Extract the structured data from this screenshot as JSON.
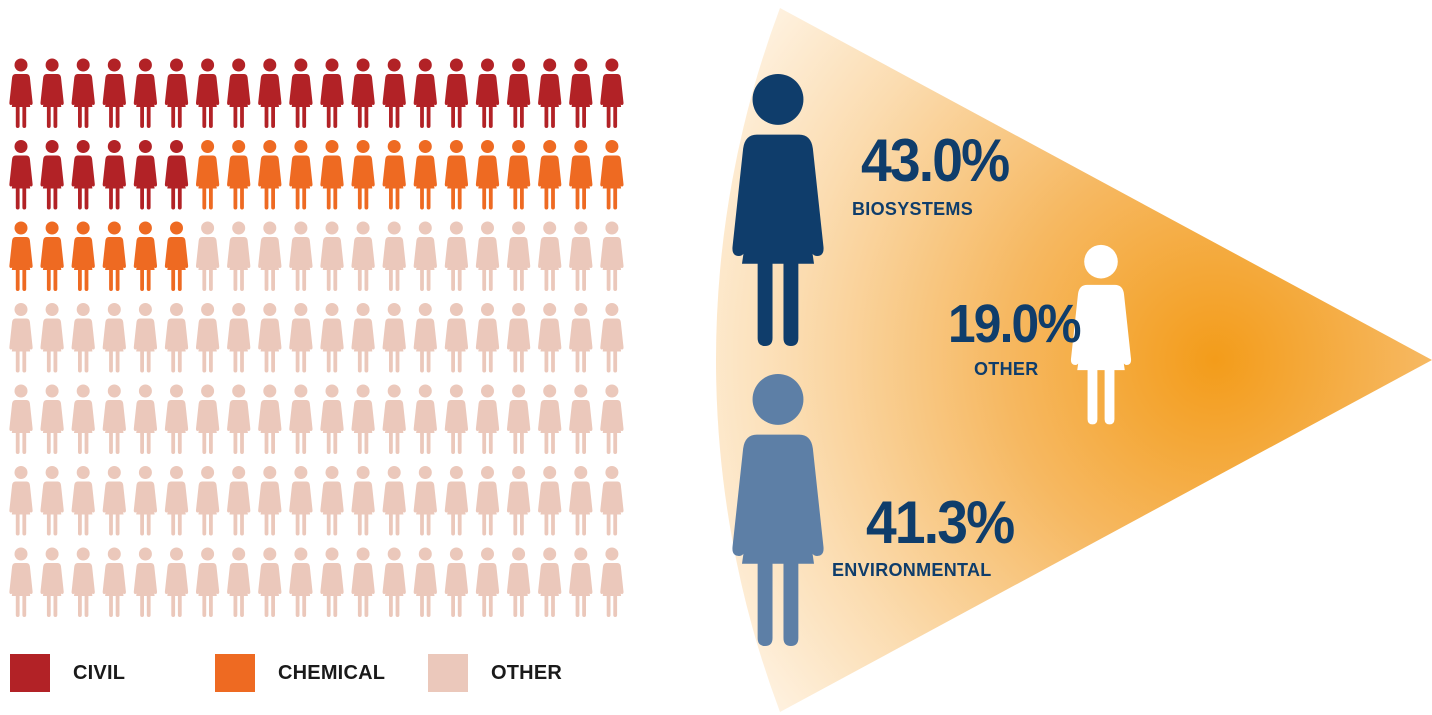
{
  "chart_data": [
    {
      "type": "pictograph",
      "rows": 7,
      "cols": 20,
      "categories": [
        "CIVIL",
        "CHEMICAL",
        "OTHER"
      ],
      "counts": [
        26,
        20,
        94
      ],
      "colors": [
        "#b22226",
        "#ee6a22",
        "#ebc8bb"
      ]
    },
    {
      "type": "pictograph-share",
      "categories": [
        "BIOSYSTEMS",
        "OTHER",
        "ENVIRONMENTAL"
      ],
      "values": [
        43.0,
        19.0,
        41.3
      ],
      "value_labels": [
        "43.0%",
        "19.0%",
        "41.3%"
      ],
      "colors": [
        "#0f3d6b",
        "#ffffff",
        "#5d7fa6"
      ]
    }
  ],
  "legend": [
    {
      "label": "CIVIL",
      "color": "#b22226"
    },
    {
      "label": "CHEMICAL",
      "color": "#ee6a22"
    },
    {
      "label": "OTHER",
      "color": "#ebc8bb"
    }
  ],
  "colors": {
    "text_dark": "#0f3d6b",
    "cone_center": "#f39c1a",
    "cone_edge": "#fff7ec"
  }
}
